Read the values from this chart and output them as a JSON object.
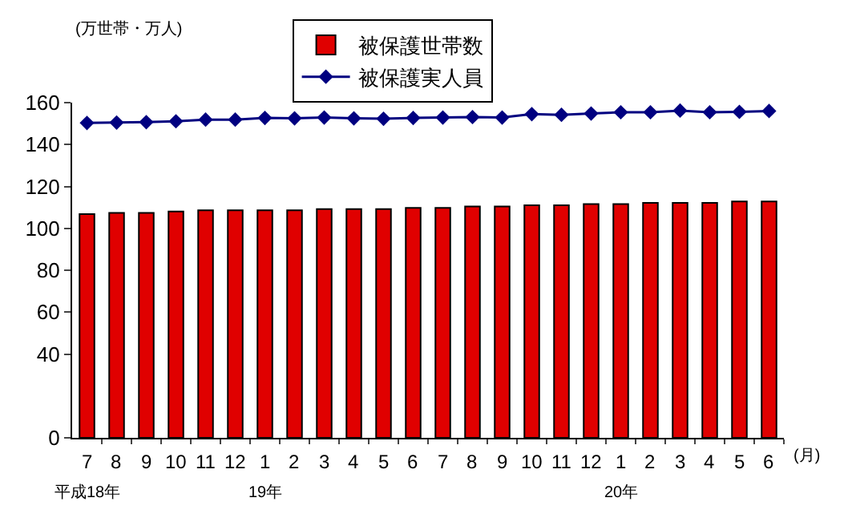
{
  "chart_data": {
    "type": "bar",
    "ylabel": "(万世帯・万人)",
    "xlabel": "(月)",
    "categories": [
      "7\n平成18年",
      "8",
      "9",
      "10",
      "11",
      "12",
      "1\n19年",
      "2",
      "3",
      "4",
      "5",
      "6",
      "7",
      "8",
      "9",
      "10",
      "11",
      "12",
      "1\n20年",
      "2",
      "3",
      "4",
      "5",
      "6"
    ],
    "series": [
      {
        "name": "被保護世帯数",
        "color": "#e00000",
        "values": [
          106.8,
          107.4,
          107.4,
          108.0,
          108.6,
          108.6,
          108.6,
          108.6,
          109.2,
          109.2,
          109.2,
          109.8,
          109.8,
          110.4,
          110.4,
          111.0,
          111.0,
          111.6,
          111.6,
          112.2,
          112.2,
          112.2,
          112.8,
          112.8
        ]
      },
      {
        "name": "被保護実人員",
        "type": "line",
        "color": "#000080",
        "values": [
          150.3,
          150.5,
          150.7,
          151.1,
          151.9,
          151.9,
          152.7,
          152.5,
          152.9,
          152.5,
          152.3,
          152.7,
          152.9,
          153.1,
          152.9,
          154.5,
          154.2,
          154.8,
          155.4,
          155.4,
          156.2,
          155.4,
          155.6,
          156.0
        ]
      }
    ],
    "ylim": [
      0,
      160
    ],
    "yticks": [
      0,
      40,
      60,
      80,
      100,
      120,
      140,
      160
    ],
    "grid": false,
    "legend": "top",
    "marker": "diamond",
    "line_style": "solid"
  }
}
